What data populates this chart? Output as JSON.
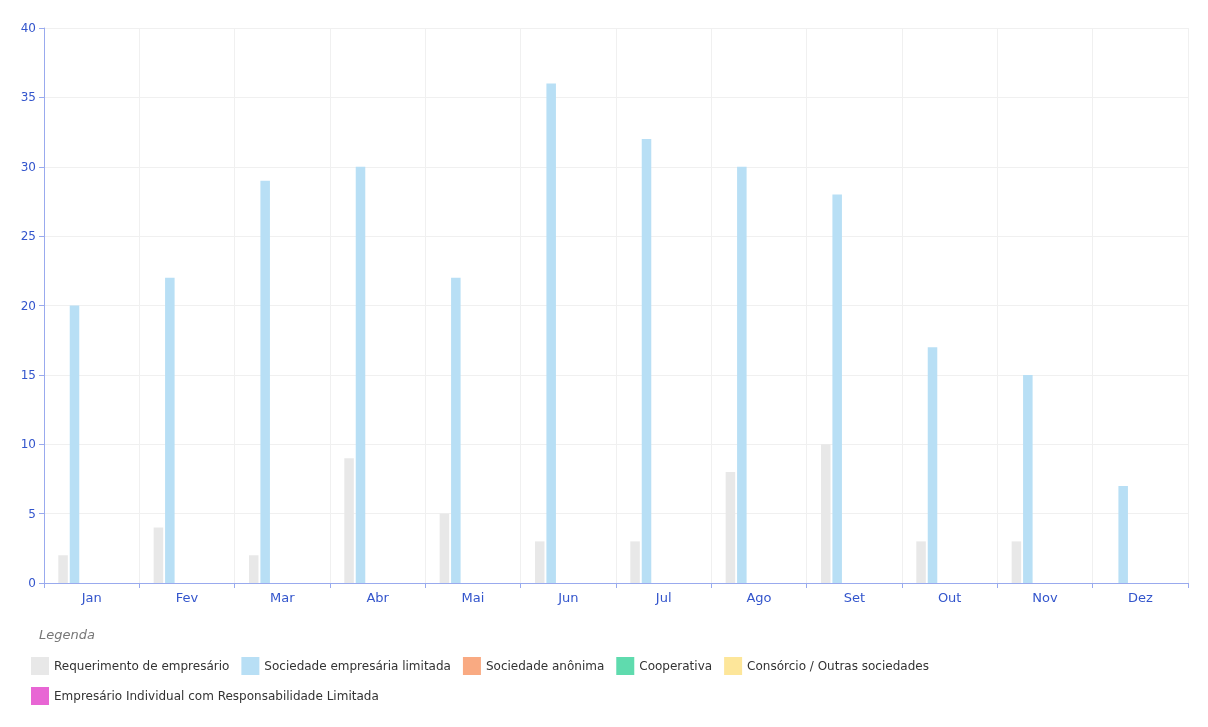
{
  "chart_data": {
    "type": "bar",
    "categories": [
      "Jan",
      "Fev",
      "Mar",
      "Abr",
      "Mai",
      "Jun",
      "Jul",
      "Ago",
      "Set",
      "Out",
      "Nov",
      "Dez"
    ],
    "series": [
      {
        "name": "Requerimento de empresário",
        "color": "#e8e8e8",
        "values": [
          2,
          4,
          2,
          9,
          5,
          3,
          3,
          8,
          10,
          3,
          3,
          0
        ]
      },
      {
        "name": "Sociedade empresária limitada",
        "color": "#b8dff5",
        "values": [
          20,
          22,
          29,
          30,
          22,
          36,
          32,
          30,
          28,
          17,
          15,
          7
        ]
      },
      {
        "name": "Sociedade anônima",
        "color": "#f9aa82",
        "values": [
          0,
          0,
          0,
          0,
          0,
          0,
          0,
          0,
          0,
          0,
          0,
          0
        ]
      },
      {
        "name": "Cooperativa",
        "color": "#5fdbae",
        "values": [
          0,
          0,
          0,
          0,
          0,
          0,
          0,
          0,
          0,
          0,
          0,
          0
        ]
      },
      {
        "name": "Consórcio / Outras sociedades",
        "color": "#fde69a",
        "values": [
          0,
          0,
          0,
          0,
          0,
          0,
          0,
          0,
          0,
          0,
          0,
          0
        ]
      },
      {
        "name": "Empresário Individual com Responsabilidade Limitada",
        "color": "#e866d4",
        "values": [
          0,
          0,
          0,
          0,
          0,
          0,
          0,
          0,
          0,
          0,
          0,
          0
        ]
      }
    ],
    "ylim": [
      0,
      40
    ],
    "yticks": [
      0,
      5,
      10,
      15,
      20,
      25,
      30,
      35,
      40
    ],
    "grid": true,
    "legend": "bottom",
    "legend_title": "Legenda"
  }
}
